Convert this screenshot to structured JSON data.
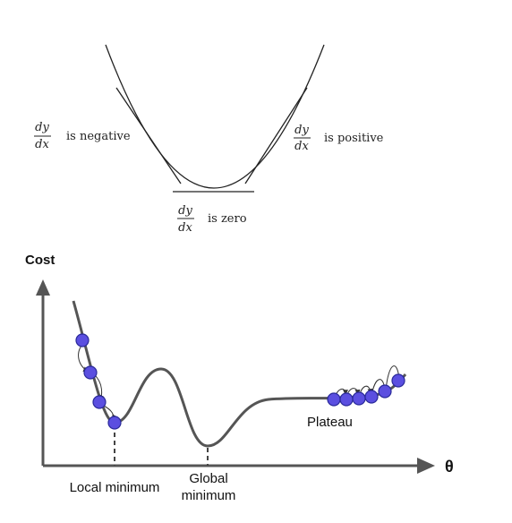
{
  "derivative_panel": {
    "negative": {
      "numerator": "dy",
      "denominator": "dx",
      "label": "is negative"
    },
    "positive": {
      "numerator": "dy",
      "denominator": "dx",
      "label": "is positive"
    },
    "zero": {
      "numerator": "dy",
      "denominator": "dx",
      "label": "is zero"
    }
  },
  "cost_panel": {
    "y_axis_label": "Cost",
    "x_axis_label": "θ",
    "local_minimum_label": "Local minimum",
    "global_minimum_label_line1": "Global",
    "global_minimum_label_line2": "minimum",
    "plateau_label": "Plateau",
    "colors": {
      "ball": "#5b4fe0",
      "ball_stroke": "#2a2a9a",
      "curve": "#555555",
      "axis": "#555555"
    }
  }
}
